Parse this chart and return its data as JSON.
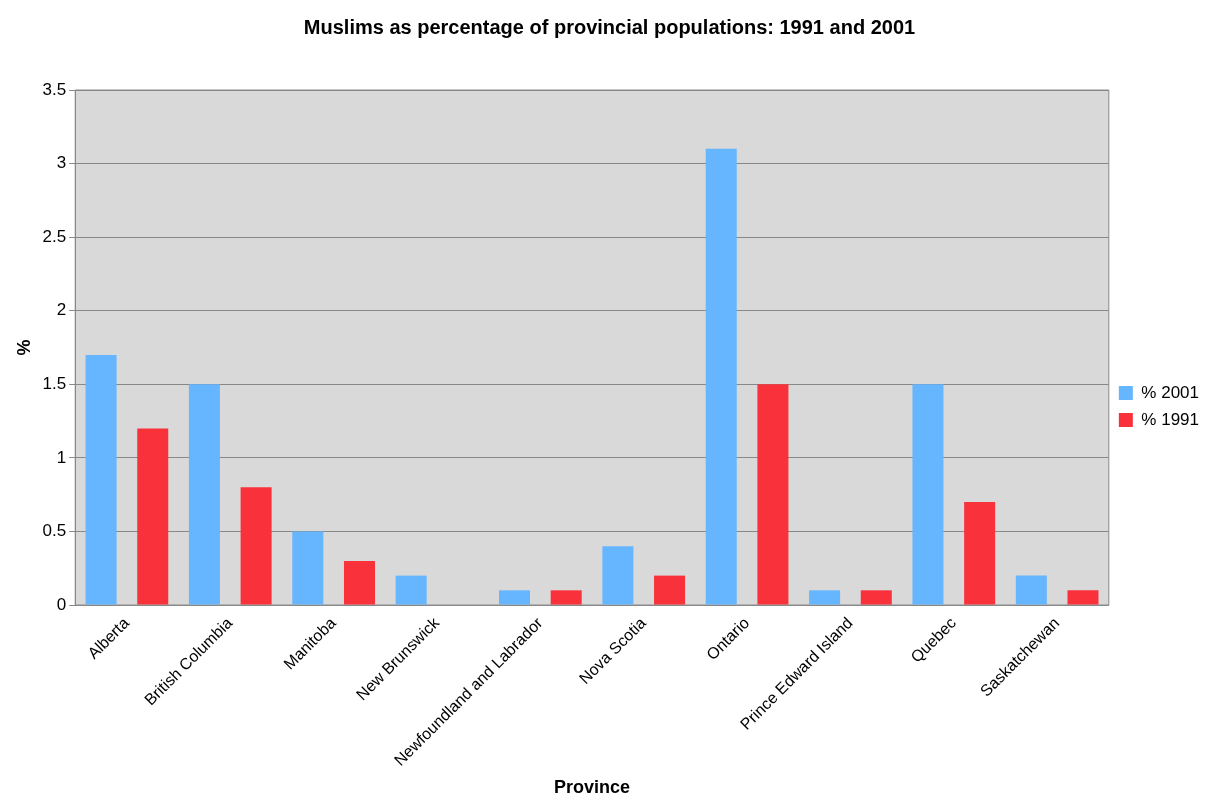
{
  "chart_data": {
    "type": "bar",
    "title": "Muslims as percentage of provincial populations: 1991 and 2001",
    "xlabel": "Province",
    "ylabel": "%",
    "categories": [
      "Alberta",
      "British Columbia",
      "Manitoba",
      "New Brunswick",
      "Newfoundland and Labrador",
      "Nova Scotia",
      "Ontario",
      "Prince Edward Island",
      "Quebec",
      "Saskatchewan"
    ],
    "series": [
      {
        "name": "% 2001",
        "color": "#66b5ff",
        "values": [
          1.7,
          1.5,
          0.5,
          0.2,
          0.1,
          0.4,
          3.1,
          0.1,
          1.5,
          0.2
        ]
      },
      {
        "name": "% 1991",
        "color": "#f9313a",
        "values": [
          1.2,
          0.8,
          0.3,
          0,
          0.1,
          0.2,
          1.5,
          0.1,
          0.7,
          0.1
        ]
      }
    ],
    "ylim": [
      0,
      3.5
    ],
    "yticks": [
      0,
      0.5,
      1,
      1.5,
      2,
      2.5,
      3,
      3.5
    ],
    "grid": "y",
    "legend": "right"
  }
}
